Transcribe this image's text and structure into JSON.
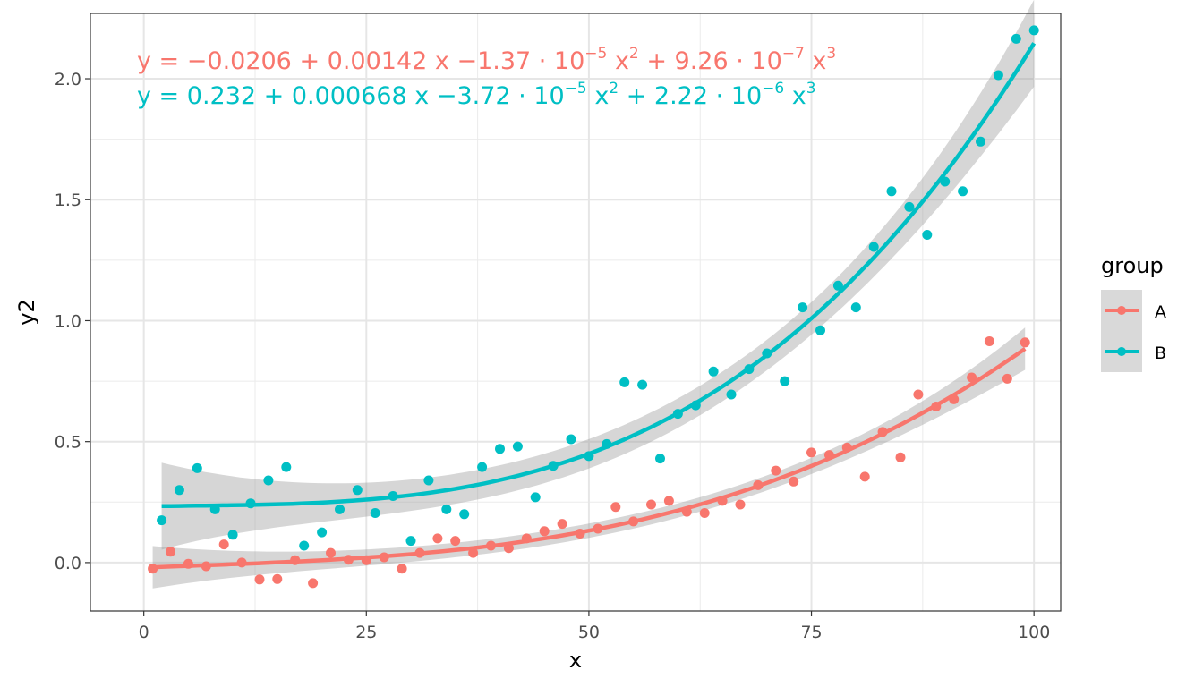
{
  "chart_data": {
    "type": "scatter",
    "xlabel": "x",
    "ylabel": "y2",
    "xlim": [
      -6,
      103
    ],
    "ylim": [
      -0.2,
      2.27
    ],
    "x_ticks": [
      0,
      25,
      50,
      75,
      100
    ],
    "x_tick_labels": [
      "0",
      "25",
      "50",
      "75",
      "100"
    ],
    "y_ticks": [
      0.0,
      0.5,
      1.0,
      1.5,
      2.0
    ],
    "y_tick_labels": [
      "0.0",
      "0.5",
      "1.0",
      "1.5",
      "2.0"
    ],
    "grid": true,
    "legend": {
      "title": "group",
      "position": "right"
    },
    "equations": [
      "y = −0.0206 + 0.00142 x −1.37 · 10⁻⁵ x² + 9.26 · 10⁻⁷ x³",
      "y = 0.232 + 0.000668 x −3.72 · 10⁻⁵ x² + 2.22 · 10⁻⁶ x³"
    ],
    "series": [
      {
        "name": "A",
        "color": "#F8766D",
        "fit": {
          "coef": [
            -0.0206,
            0.00142,
            -1.37e-05,
            9.26e-07
          ],
          "x_range": [
            1,
            99
          ]
        },
        "x": [
          1,
          3,
          5,
          7,
          9,
          11,
          13,
          15,
          17,
          19,
          21,
          23,
          25,
          27,
          29,
          31,
          33,
          35,
          37,
          39,
          41,
          43,
          45,
          47,
          49,
          51,
          53,
          55,
          57,
          59,
          61,
          63,
          65,
          67,
          69,
          71,
          73,
          75,
          77,
          79,
          81,
          83,
          85,
          87,
          89,
          91,
          93,
          95,
          97,
          99
        ],
        "y": [
          -0.025,
          0.045,
          -0.005,
          -0.015,
          0.075,
          0.0,
          -0.07,
          -0.068,
          0.01,
          -0.085,
          0.04,
          0.012,
          0.01,
          0.022,
          -0.025,
          0.04,
          0.1,
          0.09,
          0.04,
          0.07,
          0.06,
          0.1,
          0.13,
          0.16,
          0.12,
          0.14,
          0.23,
          0.17,
          0.24,
          0.255,
          0.21,
          0.205,
          0.255,
          0.24,
          0.32,
          0.38,
          0.335,
          0.455,
          0.445,
          0.475,
          0.355,
          0.54,
          0.435,
          0.695,
          0.645,
          0.675,
          0.765,
          0.915,
          0.76,
          0.91
        ]
      },
      {
        "name": "B",
        "color": "#00BFC4",
        "fit": {
          "coef": [
            0.232,
            0.000668,
            -3.72e-05,
            2.22e-06
          ],
          "x_range": [
            2,
            100
          ]
        },
        "x": [
          2,
          4,
          6,
          8,
          10,
          12,
          14,
          16,
          18,
          20,
          22,
          24,
          26,
          28,
          30,
          32,
          34,
          36,
          38,
          40,
          42,
          44,
          46,
          48,
          50,
          52,
          54,
          56,
          58,
          60,
          62,
          64,
          66,
          68,
          70,
          72,
          74,
          76,
          78,
          80,
          82,
          84,
          86,
          88,
          90,
          92,
          94,
          96,
          98,
          100
        ],
        "y": [
          0.175,
          0.3,
          0.39,
          0.22,
          0.115,
          0.245,
          0.34,
          0.395,
          0.07,
          0.125,
          0.22,
          0.3,
          0.205,
          0.275,
          0.09,
          0.34,
          0.22,
          0.2,
          0.395,
          0.47,
          0.48,
          0.27,
          0.4,
          0.51,
          0.44,
          0.49,
          0.745,
          0.735,
          0.43,
          0.615,
          0.65,
          0.79,
          0.695,
          0.8,
          0.865,
          0.75,
          1.055,
          0.96,
          1.145,
          1.055,
          1.305,
          1.535,
          1.47,
          1.355,
          1.575,
          1.535,
          1.74,
          2.015,
          2.165,
          2.2
        ]
      }
    ]
  }
}
